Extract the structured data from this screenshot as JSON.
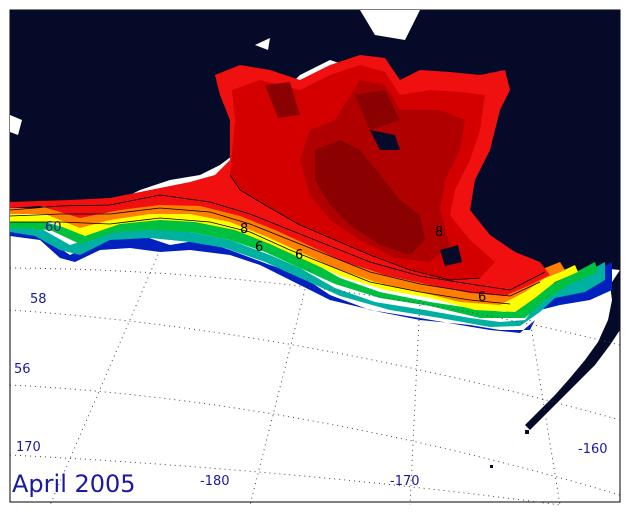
{
  "caption": "April 2005",
  "colors": {
    "land": "#050a28",
    "ice": "#ffffff",
    "grid": "#444444",
    "label": "#1a1aa0",
    "contour_bands": [
      "#8b0000",
      "#b00000",
      "#d40000",
      "#f01010",
      "#ff4000",
      "#ff8000",
      "#ffc000",
      "#ffff00",
      "#80e000",
      "#00c040",
      "#00b0a0",
      "#0060d0",
      "#0020c0"
    ]
  },
  "latitude_labels": [
    "60",
    "58",
    "56"
  ],
  "longitude_labels": [
    "170",
    "-180",
    "-170",
    "-160"
  ],
  "contour_labels": [
    "8",
    "6",
    "6",
    "8",
    "6"
  ]
}
